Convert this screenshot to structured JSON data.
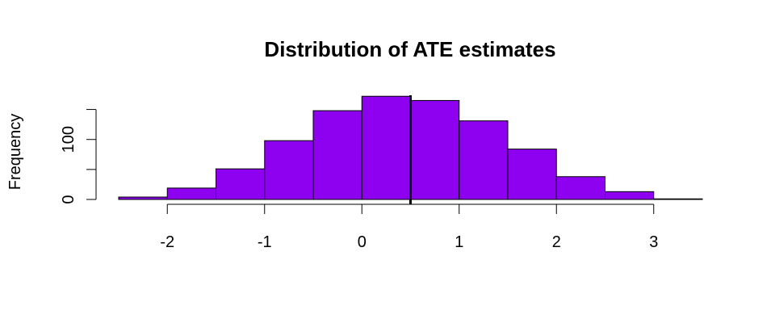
{
  "chart_data": {
    "type": "bar",
    "title": "Distribution of ATE estimates",
    "xlabel": "",
    "ylabel": "Frequency",
    "bins": [
      {
        "x0": -2.5,
        "x1": -2.0,
        "count": 4
      },
      {
        "x0": -2.0,
        "x1": -1.5,
        "count": 19
      },
      {
        "x0": -1.5,
        "x1": -1.0,
        "count": 51
      },
      {
        "x0": -1.0,
        "x1": -0.5,
        "count": 98
      },
      {
        "x0": -0.5,
        "x1": 0.0,
        "count": 148
      },
      {
        "x0": 0.0,
        "x1": 0.5,
        "count": 172
      },
      {
        "x0": 0.5,
        "x1": 1.0,
        "count": 165
      },
      {
        "x0": 1.0,
        "x1": 1.5,
        "count": 131
      },
      {
        "x0": 1.5,
        "x1": 2.0,
        "count": 84
      },
      {
        "x0": 2.0,
        "x1": 2.5,
        "count": 38
      },
      {
        "x0": 2.5,
        "x1": 3.0,
        "count": 13
      },
      {
        "x0": 3.0,
        "x1": 3.5,
        "count": 1
      }
    ],
    "reference_line_x": 0.5,
    "xlim": [
      -2.5,
      3.5
    ],
    "ylim": [
      0,
      175
    ],
    "x_ticks": [
      -2,
      -1,
      0,
      1,
      2,
      3
    ],
    "y_ticks": [
      0,
      50,
      100,
      150
    ],
    "y_tick_labels": [
      "0",
      "",
      "100",
      ""
    ],
    "bar_color": "#8E00F0",
    "bar_edge_color": "#000000",
    "line_color": "#000000",
    "grid": false,
    "legend": "none"
  }
}
